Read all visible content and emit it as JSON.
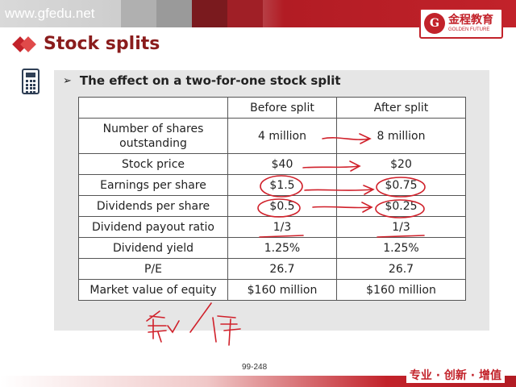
{
  "header": {
    "url": "www.gfedu.net",
    "logo_mark": "G",
    "logo_cn": "金程教育",
    "logo_en": "GOLDEN FUTURE"
  },
  "slide": {
    "title": "Stock splits",
    "bullet": "The effect on a two-for-one stock split",
    "table": {
      "headers": [
        "",
        "Before split",
        "After split"
      ],
      "rows": [
        [
          "Number of shares outstanding",
          "4 million",
          "8 million"
        ],
        [
          "Stock price",
          "$40",
          "$20"
        ],
        [
          "Earnings per share",
          "$1.5",
          "$0.75"
        ],
        [
          "Dividends per share",
          "$0.5",
          "$0.25"
        ],
        [
          "Dividend payout ratio",
          "1/3",
          "1/3"
        ],
        [
          "Dividend yield",
          "1.25%",
          "1.25%"
        ],
        [
          "P/E",
          "26.7",
          "26.7"
        ],
        [
          "Market value of equity",
          "$160 million",
          "$160 million"
        ]
      ]
    },
    "page_number": "99-248"
  },
  "footer": {
    "slogan": "专业 · 创新 · 增值"
  },
  "colors": {
    "brand_red": "#c2222a",
    "title_red": "#8a1c1c",
    "annotation_red": "#d0202a",
    "panel_gray": "#e6e6e6"
  }
}
